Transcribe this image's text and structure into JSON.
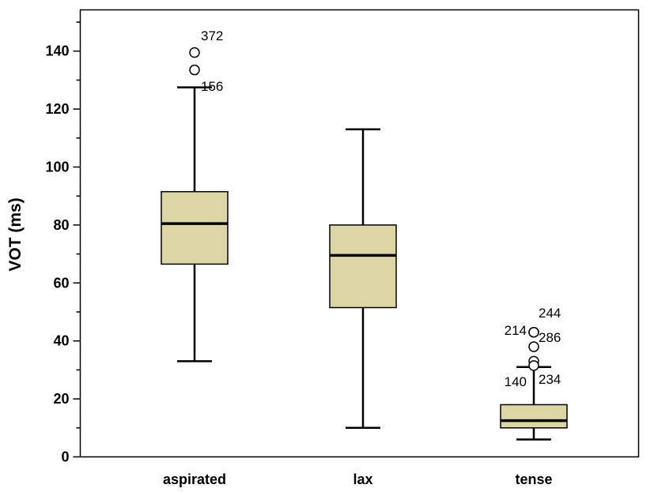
{
  "chart_data": {
    "type": "boxplot",
    "ylabel": "VOT (ms)",
    "xlabel": "",
    "ylim": [
      0,
      155
    ],
    "yticks": [
      "0",
      "20",
      "40",
      "60",
      "80",
      "100",
      "120",
      "140"
    ],
    "grid": false,
    "box_color": "#dcd6a4",
    "categories": [
      "aspirated",
      "lax",
      "tense"
    ],
    "boxes": [
      {
        "category": "aspirated",
        "min": 33,
        "q1": 66.5,
        "median": 80.5,
        "q3": 91.5,
        "max": 127.5,
        "outliers": [
          {
            "label": "372",
            "value": 139.5
          },
          {
            "label": "156",
            "value": 133.5
          }
        ]
      },
      {
        "category": "lax",
        "min": 10,
        "q1": 51.5,
        "median": 69.5,
        "q3": 80,
        "max": 113,
        "outliers": []
      },
      {
        "category": "tense",
        "min": 6,
        "q1": 10,
        "median": 12.5,
        "q3": 18,
        "max": 31,
        "outliers": [
          {
            "label": "244",
            "value": 43
          },
          {
            "label": "214",
            "value": 43
          },
          {
            "label": "286",
            "value": 38
          },
          {
            "label": "140",
            "value": 33
          },
          {
            "label": "234",
            "value": 31.5
          }
        ]
      }
    ]
  }
}
